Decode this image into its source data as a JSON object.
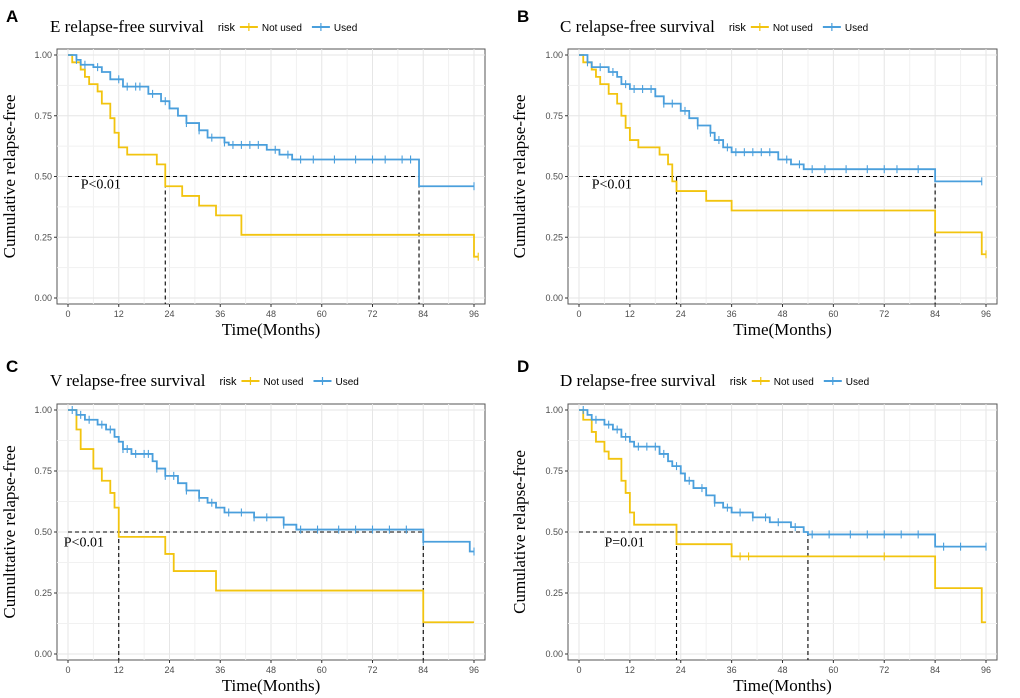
{
  "colors": {
    "not_used": "#f2c40f",
    "used": "#4a9fdc",
    "ref": "#000000",
    "grid": "#e6e6e6",
    "panel_border": "#555555"
  },
  "chart_data": [
    {
      "type": "line",
      "panel_label": "A",
      "title": "E relapse-free survival",
      "legend_title": "risk",
      "legend": [
        "Not used",
        "Used"
      ],
      "xlabel": "Time(Months)",
      "ylabel": "Cumulative relapse-free",
      "xticks": [
        "0",
        "12",
        "24",
        "36",
        "48",
        "60",
        "72",
        "84",
        "96"
      ],
      "yticks": [
        "0.00",
        "0.25",
        "0.50",
        "0.75",
        "1.00"
      ],
      "xlim": [
        0,
        96
      ],
      "ylim": [
        0,
        1
      ],
      "annotation": "P<0.01",
      "median_times": [
        23,
        83
      ],
      "series": [
        {
          "name": "Not used",
          "color_key": "not_used",
          "steps": [
            [
              0,
              1.0
            ],
            [
              1,
              0.97
            ],
            [
              3,
              0.94
            ],
            [
              4,
              0.91
            ],
            [
              5,
              0.88
            ],
            [
              7,
              0.85
            ],
            [
              8,
              0.8
            ],
            [
              10,
              0.74
            ],
            [
              11,
              0.68
            ],
            [
              12,
              0.62
            ],
            [
              14,
              0.59
            ],
            [
              21,
              0.55
            ],
            [
              23,
              0.46
            ],
            [
              27,
              0.42
            ],
            [
              31,
              0.38
            ],
            [
              35,
              0.34
            ],
            [
              41,
              0.26
            ],
            [
              96,
              0.17
            ]
          ],
          "end_time": 97,
          "censors": [
            97
          ]
        },
        {
          "name": "Used",
          "color_key": "used",
          "steps": [
            [
              0,
              1.0
            ],
            [
              2,
              0.98
            ],
            [
              3,
              0.96
            ],
            [
              6,
              0.95
            ],
            [
              8,
              0.93
            ],
            [
              10,
              0.9
            ],
            [
              13,
              0.87
            ],
            [
              19,
              0.84
            ],
            [
              22,
              0.81
            ],
            [
              24,
              0.78
            ],
            [
              26,
              0.75
            ],
            [
              28,
              0.72
            ],
            [
              31,
              0.69
            ],
            [
              33,
              0.66
            ],
            [
              37,
              0.64
            ],
            [
              38,
              0.63
            ],
            [
              47,
              0.61
            ],
            [
              50,
              0.59
            ],
            [
              53,
              0.57
            ],
            [
              83,
              0.46
            ]
          ],
          "end_time": 96,
          "censors": [
            2,
            4,
            7,
            12,
            14,
            16,
            17,
            20,
            23,
            28,
            31,
            34,
            37,
            39,
            41,
            43,
            45,
            49,
            52,
            55,
            58,
            63,
            68,
            72,
            75,
            79,
            81,
            96
          ]
        }
      ]
    },
    {
      "type": "line",
      "panel_label": "B",
      "title": "C relapse-free survival",
      "legend_title": "risk",
      "legend": [
        "Not used",
        "Used"
      ],
      "xlabel": "Time(Months)",
      "ylabel": "Cumulative relapse-free",
      "xticks": [
        "0",
        "12",
        "24",
        "36",
        "48",
        "60",
        "72",
        "84",
        "96"
      ],
      "yticks": [
        "0.00",
        "0.25",
        "0.50",
        "0.75",
        "1.00"
      ],
      "xlim": [
        0,
        96
      ],
      "ylim": [
        0,
        1
      ],
      "annotation": "P<0.01",
      "median_times": [
        23,
        84
      ],
      "series": [
        {
          "name": "Not used",
          "color_key": "not_used",
          "steps": [
            [
              0,
              1.0
            ],
            [
              1,
              0.97
            ],
            [
              3,
              0.94
            ],
            [
              4,
              0.91
            ],
            [
              5,
              0.88
            ],
            [
              7,
              0.84
            ],
            [
              9,
              0.8
            ],
            [
              10,
              0.75
            ],
            [
              11,
              0.7
            ],
            [
              12,
              0.65
            ],
            [
              14,
              0.62
            ],
            [
              19,
              0.59
            ],
            [
              21,
              0.55
            ],
            [
              22,
              0.48
            ],
            [
              23,
              0.44
            ],
            [
              30,
              0.4
            ],
            [
              36,
              0.36
            ],
            [
              84,
              0.27
            ],
            [
              95,
              0.18
            ]
          ],
          "end_time": 96,
          "censors": [
            96
          ]
        },
        {
          "name": "Used",
          "color_key": "used",
          "steps": [
            [
              0,
              1.0
            ],
            [
              2,
              0.97
            ],
            [
              3,
              0.95
            ],
            [
              7,
              0.93
            ],
            [
              9,
              0.91
            ],
            [
              10,
              0.88
            ],
            [
              12,
              0.86
            ],
            [
              18,
              0.83
            ],
            [
              20,
              0.8
            ],
            [
              24,
              0.77
            ],
            [
              26,
              0.74
            ],
            [
              28,
              0.71
            ],
            [
              31,
              0.68
            ],
            [
              32,
              0.65
            ],
            [
              34,
              0.62
            ],
            [
              36,
              0.6
            ],
            [
              47,
              0.57
            ],
            [
              50,
              0.55
            ],
            [
              53,
              0.53
            ],
            [
              84,
              0.48
            ]
          ],
          "end_time": 95,
          "censors": [
            2,
            5,
            8,
            11,
            13,
            15,
            17,
            20,
            22,
            25,
            28,
            31,
            33,
            35,
            37,
            39,
            41,
            43,
            45,
            49,
            52,
            55,
            58,
            63,
            68,
            72,
            75,
            80,
            95
          ]
        }
      ]
    },
    {
      "type": "line",
      "panel_label": "C",
      "title": "V relapse-free survival",
      "legend_title": "risk",
      "legend": [
        "Not used",
        "Used"
      ],
      "xlabel": "Time(Months)",
      "ylabel": "Cumulttative relapse-free",
      "xticks": [
        "0",
        "12",
        "24",
        "36",
        "48",
        "60",
        "72",
        "84",
        "96"
      ],
      "yticks": [
        "0.00",
        "0.25",
        "0.50",
        "0.75",
        "1.00"
      ],
      "xlim": [
        0,
        96
      ],
      "ylim": [
        0,
        1
      ],
      "annotation": "P<0.01",
      "median_times": [
        12,
        84
      ],
      "series": [
        {
          "name": "Not used",
          "color_key": "not_used",
          "steps": [
            [
              0,
              1.0
            ],
            [
              2,
              0.92
            ],
            [
              3,
              0.84
            ],
            [
              6,
              0.76
            ],
            [
              8,
              0.71
            ],
            [
              10,
              0.66
            ],
            [
              11,
              0.6
            ],
            [
              12,
              0.48
            ],
            [
              23,
              0.41
            ],
            [
              25,
              0.34
            ],
            [
              35,
              0.26
            ],
            [
              84,
              0.13
            ]
          ],
          "end_time": 96,
          "censors": []
        },
        {
          "name": "Used",
          "color_key": "used",
          "steps": [
            [
              0,
              1.0
            ],
            [
              2,
              0.98
            ],
            [
              4,
              0.96
            ],
            [
              7,
              0.94
            ],
            [
              9,
              0.92
            ],
            [
              11,
              0.89
            ],
            [
              12,
              0.87
            ],
            [
              13,
              0.84
            ],
            [
              15,
              0.82
            ],
            [
              20,
              0.79
            ],
            [
              21,
              0.76
            ],
            [
              23,
              0.73
            ],
            [
              26,
              0.7
            ],
            [
              28,
              0.67
            ],
            [
              31,
              0.64
            ],
            [
              33,
              0.62
            ],
            [
              35,
              0.6
            ],
            [
              37,
              0.58
            ],
            [
              44,
              0.56
            ],
            [
              51,
              0.53
            ],
            [
              54,
              0.51
            ],
            [
              84,
              0.46
            ],
            [
              95,
              0.42
            ]
          ],
          "end_time": 96,
          "censors": [
            1,
            3,
            5,
            8,
            10,
            13,
            14,
            16,
            18,
            19,
            21,
            23,
            25,
            28,
            31,
            34,
            38,
            41,
            44,
            47,
            51,
            55,
            59,
            64,
            68,
            72,
            76,
            80,
            84,
            96
          ]
        }
      ]
    },
    {
      "type": "line",
      "panel_label": "D",
      "title": "D relapse-free survival",
      "legend_title": "risk",
      "legend": [
        "Not used",
        "Used"
      ],
      "xlabel": "Time(Months)",
      "ylabel": "Cumulative relapse-free",
      "xticks": [
        "0",
        "12",
        "24",
        "36",
        "48",
        "60",
        "72",
        "84",
        "96"
      ],
      "yticks": [
        "0.00",
        "0.25",
        "0.50",
        "0.75",
        "1.00"
      ],
      "xlim": [
        0,
        96
      ],
      "ylim": [
        0,
        1
      ],
      "annotation": "P=0.01",
      "median_times": [
        23,
        54
      ],
      "series": [
        {
          "name": "Not used",
          "color_key": "not_used",
          "steps": [
            [
              0,
              1.0
            ],
            [
              1,
              0.96
            ],
            [
              3,
              0.91
            ],
            [
              4,
              0.87
            ],
            [
              6,
              0.83
            ],
            [
              7,
              0.8
            ],
            [
              10,
              0.71
            ],
            [
              11,
              0.66
            ],
            [
              12,
              0.58
            ],
            [
              13,
              0.53
            ],
            [
              23,
              0.45
            ],
            [
              36,
              0.4
            ],
            [
              84,
              0.27
            ],
            [
              95,
              0.13
            ]
          ],
          "end_time": 96,
          "censors": [
            38,
            40,
            72
          ]
        },
        {
          "name": "Used",
          "color_key": "used",
          "steps": [
            [
              0,
              1.0
            ],
            [
              2,
              0.98
            ],
            [
              3,
              0.96
            ],
            [
              6,
              0.94
            ],
            [
              8,
              0.92
            ],
            [
              10,
              0.89
            ],
            [
              12,
              0.87
            ],
            [
              13,
              0.85
            ],
            [
              19,
              0.82
            ],
            [
              21,
              0.79
            ],
            [
              22,
              0.77
            ],
            [
              24,
              0.74
            ],
            [
              25,
              0.71
            ],
            [
              27,
              0.68
            ],
            [
              30,
              0.65
            ],
            [
              32,
              0.62
            ],
            [
              34,
              0.6
            ],
            [
              36,
              0.58
            ],
            [
              41,
              0.56
            ],
            [
              45,
              0.54
            ],
            [
              50,
              0.52
            ],
            [
              53,
              0.5
            ],
            [
              54,
              0.49
            ],
            [
              84,
              0.44
            ]
          ],
          "end_time": 96,
          "censors": [
            1,
            4,
            7,
            9,
            11,
            14,
            16,
            18,
            20,
            23,
            26,
            29,
            32,
            35,
            38,
            41,
            44,
            47,
            51,
            55,
            59,
            64,
            68,
            72,
            76,
            80,
            86,
            90,
            96
          ]
        }
      ]
    }
  ]
}
